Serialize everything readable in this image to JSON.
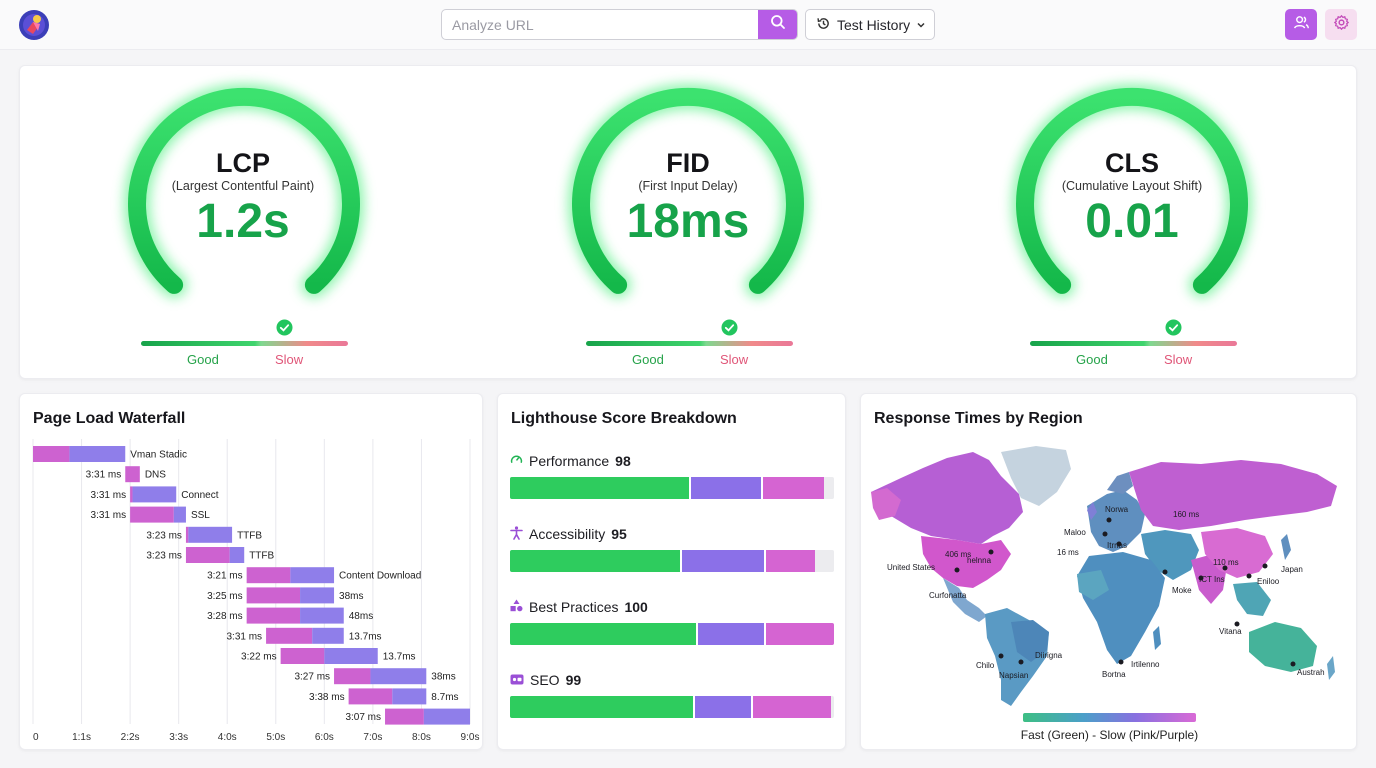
{
  "header": {
    "search_placeholder": "Analyze URL",
    "history_label": "Test History",
    "icons": [
      "app-logo",
      "search-icon",
      "history-icon",
      "chevron-down-icon",
      "users-icon",
      "gear-icon"
    ]
  },
  "colors": {
    "accent": "#b65ce6",
    "good": "#1fbf55",
    "slow": "#e05678",
    "lh_green": "#2ecc5e",
    "lh_violet": "#8b70e8",
    "lh_pink": "#d564d2"
  },
  "vitals": [
    {
      "name": "LCP",
      "subtitle": "(Largest Contentful Paint)",
      "value": "1.2s",
      "good_label": "Good",
      "slow_label": "Slow"
    },
    {
      "name": "FID",
      "subtitle": "(First Input Delay)",
      "value": "18ms",
      "good_label": "Good",
      "slow_label": "Slow"
    },
    {
      "name": "CLS",
      "subtitle": "(Cumulative Layout Shift)",
      "value": "0.01",
      "good_label": "Good",
      "slow_label": "Slow"
    }
  ],
  "waterfall": {
    "title": "Page Load Waterfall",
    "axis_ticks": [
      "0",
      "1:1s",
      "2:2s",
      "3:3s",
      "4:0s",
      "5:0s",
      "6:0s",
      "7:0s",
      "8:0s",
      "9:0s"
    ],
    "rows": [
      {
        "left": "",
        "right": "Vman Stadic",
        "start": 0,
        "end": 1.9,
        "split": 0.75
      },
      {
        "left": "3:31 ms",
        "right": "DNS",
        "start": 1.9,
        "end": 2.2,
        "split": 2.2
      },
      {
        "left": "3:31 ms",
        "right": "Connect",
        "start": 2.0,
        "end": 2.95,
        "split": 2.05
      },
      {
        "left": "3:31 ms",
        "right": "SSL",
        "start": 2.0,
        "end": 3.15,
        "split": 2.9
      },
      {
        "left": "3:23 ms",
        "right": "TTFB",
        "start": 3.15,
        "end": 4.1,
        "split": 3.2
      },
      {
        "left": "3:23 ms",
        "right": "TTFB",
        "start": 3.15,
        "end": 4.35,
        "split": 4.05
      },
      {
        "left": "3:21 ms",
        "right": "Content Download",
        "start": 4.4,
        "end": 6.2,
        "split": 5.3
      },
      {
        "left": "3:25 ms",
        "right": "38ms",
        "start": 4.4,
        "end": 6.2,
        "split": 5.5
      },
      {
        "left": "3:28 ms",
        "right": "48ms",
        "start": 4.4,
        "end": 6.4,
        "split": 5.5
      },
      {
        "left": "3:31 ms",
        "right": "13.7ms",
        "start": 4.8,
        "end": 6.4,
        "split": 5.75
      },
      {
        "left": "3:22 ms",
        "right": "13.7ms",
        "start": 5.1,
        "end": 7.1,
        "split": 6.0
      },
      {
        "left": "3:27 ms",
        "right": "38ms",
        "start": 6.2,
        "end": 8.1,
        "split": 6.95
      },
      {
        "left": "3:38 ms",
        "right": "8.7ms",
        "start": 6.5,
        "end": 8.1,
        "split": 7.4
      },
      {
        "left": "3:07 ms",
        "right": "",
        "start": 7.25,
        "end": 9.0,
        "split": 8.05
      }
    ]
  },
  "lighthouse": {
    "title": "Lighthouse Score Breakdown",
    "categories": [
      {
        "label": "Performance",
        "score": "98",
        "icon": "gauge-icon",
        "segments": [
          0.56,
          0.22,
          0.19
        ]
      },
      {
        "label": "Accessibility",
        "score": "95",
        "icon": "accessibility-icon",
        "segments": [
          0.53,
          0.26,
          0.15
        ]
      },
      {
        "label": "Best Practices",
        "score": "100",
        "icon": "shapes-icon",
        "segments": [
          0.58,
          0.21,
          0.21
        ]
      },
      {
        "label": "SEO",
        "score": "99",
        "icon": "seo-badge-icon",
        "segments": [
          0.57,
          0.18,
          0.24
        ]
      }
    ]
  },
  "map": {
    "title": "Response Times by Region",
    "legend": "Fast (Green) - Slow (Pink/Purple)",
    "labels": [
      "United States",
      "406 ms",
      "helnna",
      "Curfonatta",
      "Chilo",
      "Napsian",
      "Diirigna",
      "Bortna",
      "Irtilenno",
      "Norwa",
      "Maloo",
      "16 ms",
      "160 ms",
      "110 ms",
      "Japan",
      "Eniloo",
      "Moke",
      "Vitana",
      "Austrah",
      "ICT Ins",
      "Itrnas"
    ]
  }
}
